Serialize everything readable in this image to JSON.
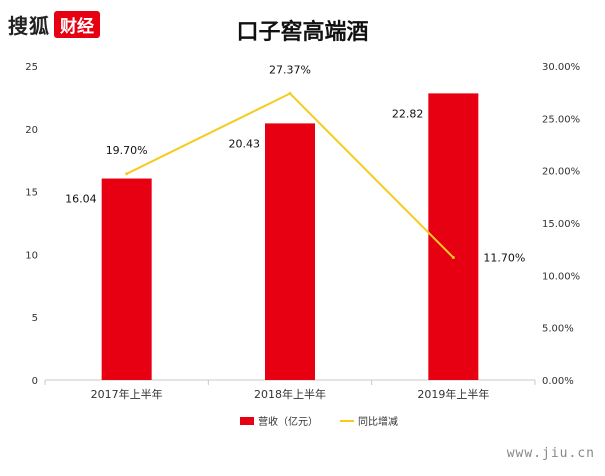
{
  "header": {
    "logo_brand": "搜狐",
    "logo_sub": "财经",
    "watermark": "www.jiu.cn"
  },
  "colors": {
    "bar": "#e60012",
    "line": "#f5cc1d",
    "axis": "#c8c8c8",
    "text": "#333333"
  },
  "chart_data": {
    "type": "bar",
    "title": "口子窖高端酒",
    "categories": [
      "2017年上半年",
      "2018年上半年",
      "2019年上半年"
    ],
    "series": [
      {
        "name": "营收（亿元）",
        "type": "bar",
        "axis": "left",
        "values": [
          16.04,
          20.43,
          22.82
        ],
        "labels": [
          "16.04",
          "20.43",
          "22.82"
        ]
      },
      {
        "name": "同比增减",
        "type": "line",
        "axis": "right",
        "values": [
          19.7,
          27.37,
          11.7
        ],
        "labels": [
          "19.70%",
          "27.37%",
          "11.70%"
        ]
      }
    ],
    "y_left": {
      "range": [
        0,
        25
      ],
      "ticks": [
        "0",
        "5",
        "10",
        "15",
        "20",
        "25"
      ],
      "tick_values": [
        0,
        5,
        10,
        15,
        20,
        25
      ]
    },
    "y_right": {
      "range": [
        0,
        30
      ],
      "ticks": [
        "0.00%",
        "5.00%",
        "10.00%",
        "15.00%",
        "20.00%",
        "25.00%",
        "30.00%"
      ],
      "tick_values": [
        0,
        5,
        10,
        15,
        20,
        25,
        30
      ]
    },
    "grid": false,
    "legend": "bottom-center"
  }
}
